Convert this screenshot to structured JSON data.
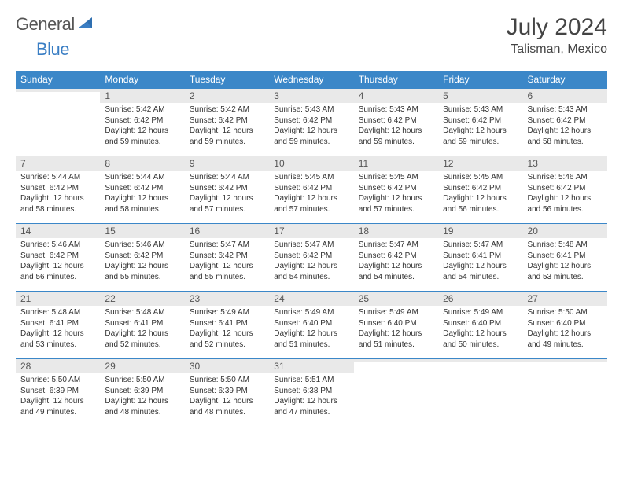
{
  "brand": {
    "word1": "General",
    "word2": "Blue"
  },
  "title": "July 2024",
  "location": "Talisman, Mexico",
  "colors": {
    "header_bg": "#3b87c8",
    "header_text": "#ffffff",
    "daynum_bg": "#e9e9e9",
    "text": "#333333",
    "brand_blue": "#3a7ec4",
    "row_border": "#3b87c8"
  },
  "weekdays": [
    "Sunday",
    "Monday",
    "Tuesday",
    "Wednesday",
    "Thursday",
    "Friday",
    "Saturday"
  ],
  "weeks": [
    [
      {
        "n": "",
        "sunrise": "",
        "sunset": "",
        "daylight": ""
      },
      {
        "n": "1",
        "sunrise": "Sunrise: 5:42 AM",
        "sunset": "Sunset: 6:42 PM",
        "daylight": "Daylight: 12 hours and 59 minutes."
      },
      {
        "n": "2",
        "sunrise": "Sunrise: 5:42 AM",
        "sunset": "Sunset: 6:42 PM",
        "daylight": "Daylight: 12 hours and 59 minutes."
      },
      {
        "n": "3",
        "sunrise": "Sunrise: 5:43 AM",
        "sunset": "Sunset: 6:42 PM",
        "daylight": "Daylight: 12 hours and 59 minutes."
      },
      {
        "n": "4",
        "sunrise": "Sunrise: 5:43 AM",
        "sunset": "Sunset: 6:42 PM",
        "daylight": "Daylight: 12 hours and 59 minutes."
      },
      {
        "n": "5",
        "sunrise": "Sunrise: 5:43 AM",
        "sunset": "Sunset: 6:42 PM",
        "daylight": "Daylight: 12 hours and 59 minutes."
      },
      {
        "n": "6",
        "sunrise": "Sunrise: 5:43 AM",
        "sunset": "Sunset: 6:42 PM",
        "daylight": "Daylight: 12 hours and 58 minutes."
      }
    ],
    [
      {
        "n": "7",
        "sunrise": "Sunrise: 5:44 AM",
        "sunset": "Sunset: 6:42 PM",
        "daylight": "Daylight: 12 hours and 58 minutes."
      },
      {
        "n": "8",
        "sunrise": "Sunrise: 5:44 AM",
        "sunset": "Sunset: 6:42 PM",
        "daylight": "Daylight: 12 hours and 58 minutes."
      },
      {
        "n": "9",
        "sunrise": "Sunrise: 5:44 AM",
        "sunset": "Sunset: 6:42 PM",
        "daylight": "Daylight: 12 hours and 57 minutes."
      },
      {
        "n": "10",
        "sunrise": "Sunrise: 5:45 AM",
        "sunset": "Sunset: 6:42 PM",
        "daylight": "Daylight: 12 hours and 57 minutes."
      },
      {
        "n": "11",
        "sunrise": "Sunrise: 5:45 AM",
        "sunset": "Sunset: 6:42 PM",
        "daylight": "Daylight: 12 hours and 57 minutes."
      },
      {
        "n": "12",
        "sunrise": "Sunrise: 5:45 AM",
        "sunset": "Sunset: 6:42 PM",
        "daylight": "Daylight: 12 hours and 56 minutes."
      },
      {
        "n": "13",
        "sunrise": "Sunrise: 5:46 AM",
        "sunset": "Sunset: 6:42 PM",
        "daylight": "Daylight: 12 hours and 56 minutes."
      }
    ],
    [
      {
        "n": "14",
        "sunrise": "Sunrise: 5:46 AM",
        "sunset": "Sunset: 6:42 PM",
        "daylight": "Daylight: 12 hours and 56 minutes."
      },
      {
        "n": "15",
        "sunrise": "Sunrise: 5:46 AM",
        "sunset": "Sunset: 6:42 PM",
        "daylight": "Daylight: 12 hours and 55 minutes."
      },
      {
        "n": "16",
        "sunrise": "Sunrise: 5:47 AM",
        "sunset": "Sunset: 6:42 PM",
        "daylight": "Daylight: 12 hours and 55 minutes."
      },
      {
        "n": "17",
        "sunrise": "Sunrise: 5:47 AM",
        "sunset": "Sunset: 6:42 PM",
        "daylight": "Daylight: 12 hours and 54 minutes."
      },
      {
        "n": "18",
        "sunrise": "Sunrise: 5:47 AM",
        "sunset": "Sunset: 6:42 PM",
        "daylight": "Daylight: 12 hours and 54 minutes."
      },
      {
        "n": "19",
        "sunrise": "Sunrise: 5:47 AM",
        "sunset": "Sunset: 6:41 PM",
        "daylight": "Daylight: 12 hours and 54 minutes."
      },
      {
        "n": "20",
        "sunrise": "Sunrise: 5:48 AM",
        "sunset": "Sunset: 6:41 PM",
        "daylight": "Daylight: 12 hours and 53 minutes."
      }
    ],
    [
      {
        "n": "21",
        "sunrise": "Sunrise: 5:48 AM",
        "sunset": "Sunset: 6:41 PM",
        "daylight": "Daylight: 12 hours and 53 minutes."
      },
      {
        "n": "22",
        "sunrise": "Sunrise: 5:48 AM",
        "sunset": "Sunset: 6:41 PM",
        "daylight": "Daylight: 12 hours and 52 minutes."
      },
      {
        "n": "23",
        "sunrise": "Sunrise: 5:49 AM",
        "sunset": "Sunset: 6:41 PM",
        "daylight": "Daylight: 12 hours and 52 minutes."
      },
      {
        "n": "24",
        "sunrise": "Sunrise: 5:49 AM",
        "sunset": "Sunset: 6:40 PM",
        "daylight": "Daylight: 12 hours and 51 minutes."
      },
      {
        "n": "25",
        "sunrise": "Sunrise: 5:49 AM",
        "sunset": "Sunset: 6:40 PM",
        "daylight": "Daylight: 12 hours and 51 minutes."
      },
      {
        "n": "26",
        "sunrise": "Sunrise: 5:49 AM",
        "sunset": "Sunset: 6:40 PM",
        "daylight": "Daylight: 12 hours and 50 minutes."
      },
      {
        "n": "27",
        "sunrise": "Sunrise: 5:50 AM",
        "sunset": "Sunset: 6:40 PM",
        "daylight": "Daylight: 12 hours and 49 minutes."
      }
    ],
    [
      {
        "n": "28",
        "sunrise": "Sunrise: 5:50 AM",
        "sunset": "Sunset: 6:39 PM",
        "daylight": "Daylight: 12 hours and 49 minutes."
      },
      {
        "n": "29",
        "sunrise": "Sunrise: 5:50 AM",
        "sunset": "Sunset: 6:39 PM",
        "daylight": "Daylight: 12 hours and 48 minutes."
      },
      {
        "n": "30",
        "sunrise": "Sunrise: 5:50 AM",
        "sunset": "Sunset: 6:39 PM",
        "daylight": "Daylight: 12 hours and 48 minutes."
      },
      {
        "n": "31",
        "sunrise": "Sunrise: 5:51 AM",
        "sunset": "Sunset: 6:38 PM",
        "daylight": "Daylight: 12 hours and 47 minutes."
      },
      {
        "n": "",
        "sunrise": "",
        "sunset": "",
        "daylight": ""
      },
      {
        "n": "",
        "sunrise": "",
        "sunset": "",
        "daylight": ""
      },
      {
        "n": "",
        "sunrise": "",
        "sunset": "",
        "daylight": ""
      }
    ]
  ]
}
